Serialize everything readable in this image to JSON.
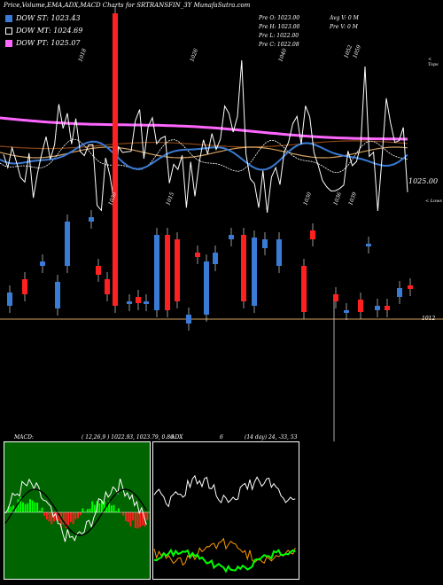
{
  "title": "Price,Volume,EMA,ADX,MACD Charts for SRTRANSFIN_3Y MunafaSutra.com",
  "legend": [
    {
      "label": "DOW ST: 1023.43",
      "color": "#3a7bd5"
    },
    {
      "label": "DOW MT: 1024.69",
      "color": "#ffffff"
    },
    {
      "label": "DOW PT: 1025.07",
      "color": "#ff66ff"
    }
  ],
  "info": {
    "col1": [
      "Pre  O: 1023.00",
      "Pre  H: 1023.00",
      "Pre  L: 1022.00",
      "Pre  C: 1022.08"
    ],
    "col2": [
      "Avg V: 0  M",
      "Pre  V: 0  M"
    ]
  },
  "price_labels": {
    "right_top": "< Tops",
    "right_mid": "1025.00",
    "right_low": "< Lows",
    "support": "1012"
  },
  "chart_data": [
    {
      "type": "line",
      "name": "price",
      "top_labels": [
        "1018",
        "1026",
        "1040",
        "1052",
        "1059"
      ],
      "bottom_labels": [
        "1030",
        "1015",
        "1030",
        "1036",
        "1039"
      ]
    },
    {
      "type": "bar",
      "name": "candles"
    },
    {
      "type": "line",
      "name": "MACD",
      "label": "MACD:",
      "params": "( 12,26,9 ) 1022.93,  1023.79,  0.86"
    },
    {
      "type": "line",
      "name": "ADX",
      "label": "ADX",
      "value": "6",
      "params": "(14  day) 24,  -33,  53"
    }
  ],
  "colors": {
    "up": "#3a7bd5",
    "down": "#ff2020",
    "ema_long": "#ff66ff",
    "ema_mid": "#d2a060",
    "ema_fast": "#3a7bd5",
    "adx_green": "#00ff00",
    "adx_orange": "#ff9900"
  }
}
